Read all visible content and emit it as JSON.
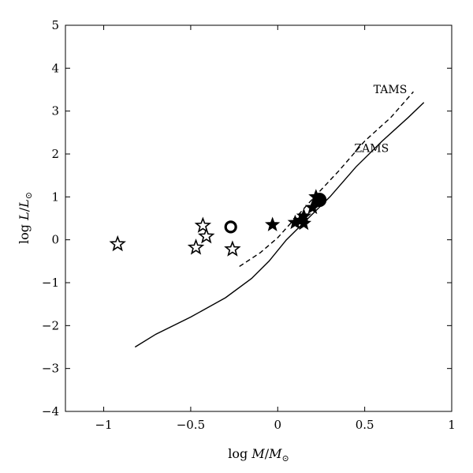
{
  "chart_data": {
    "type": "scatter",
    "xlabel_parts": [
      "log ",
      "M",
      "/",
      "M",
      "⊙"
    ],
    "ylabel_parts": [
      "log ",
      "L",
      "/",
      "L",
      "⊙"
    ],
    "xlim": [
      -1.22,
      1.0
    ],
    "ylim": [
      -4,
      5
    ],
    "x_ticks": [
      -1,
      -0.5,
      0,
      0.5,
      1
    ],
    "x_tick_labels": [
      "−1",
      "−0.5",
      "0",
      "0.5",
      "1"
    ],
    "y_ticks": [
      -4,
      -3,
      -2,
      -1,
      0,
      1,
      2,
      3,
      4,
      5
    ],
    "y_tick_labels": [
      "−4",
      "−3",
      "−2",
      "−1",
      "0",
      "1",
      "2",
      "3",
      "4",
      "5"
    ],
    "grid": false,
    "lines": [
      {
        "label": "ZAMS",
        "style": "solid",
        "points": [
          [
            -0.82,
            -2.5
          ],
          [
            -0.7,
            -2.2
          ],
          [
            -0.5,
            -1.8
          ],
          [
            -0.3,
            -1.35
          ],
          [
            -0.15,
            -0.9
          ],
          [
            -0.05,
            -0.5
          ],
          [
            0.05,
            0.0
          ],
          [
            0.15,
            0.4
          ],
          [
            0.3,
            1.0
          ],
          [
            0.45,
            1.7
          ],
          [
            0.6,
            2.3
          ],
          [
            0.75,
            2.85
          ],
          [
            0.84,
            3.2
          ]
        ],
        "label_at": [
          0.44,
          2.05
        ]
      },
      {
        "label": "TAMS",
        "style": "dashed",
        "points": [
          [
            -0.22,
            -0.62
          ],
          [
            -0.1,
            -0.3
          ],
          [
            0.0,
            0.05
          ],
          [
            0.1,
            0.5
          ],
          [
            0.2,
            0.95
          ],
          [
            0.35,
            1.6
          ],
          [
            0.5,
            2.3
          ],
          [
            0.65,
            2.85
          ],
          [
            0.78,
            3.45
          ]
        ],
        "label_at": [
          0.55,
          3.42
        ]
      }
    ],
    "series": [
      {
        "marker": "open-star",
        "points": [
          [
            -0.92,
            -0.1
          ],
          [
            -0.43,
            0.33
          ],
          [
            -0.41,
            0.08
          ],
          [
            -0.47,
            -0.18
          ],
          [
            -0.26,
            -0.22
          ]
        ]
      },
      {
        "marker": "filled-star",
        "points": [
          [
            -0.03,
            0.35
          ],
          [
            0.1,
            0.4
          ],
          [
            0.13,
            0.45
          ],
          [
            0.15,
            0.38
          ],
          [
            0.15,
            0.55
          ],
          [
            0.2,
            0.75
          ],
          [
            0.22,
            1.0
          ]
        ]
      },
      {
        "marker": "open-circle",
        "points": [
          [
            -0.27,
            0.3
          ]
        ]
      },
      {
        "marker": "filled-circle",
        "points": [
          [
            0.24,
            0.93
          ]
        ]
      }
    ]
  }
}
